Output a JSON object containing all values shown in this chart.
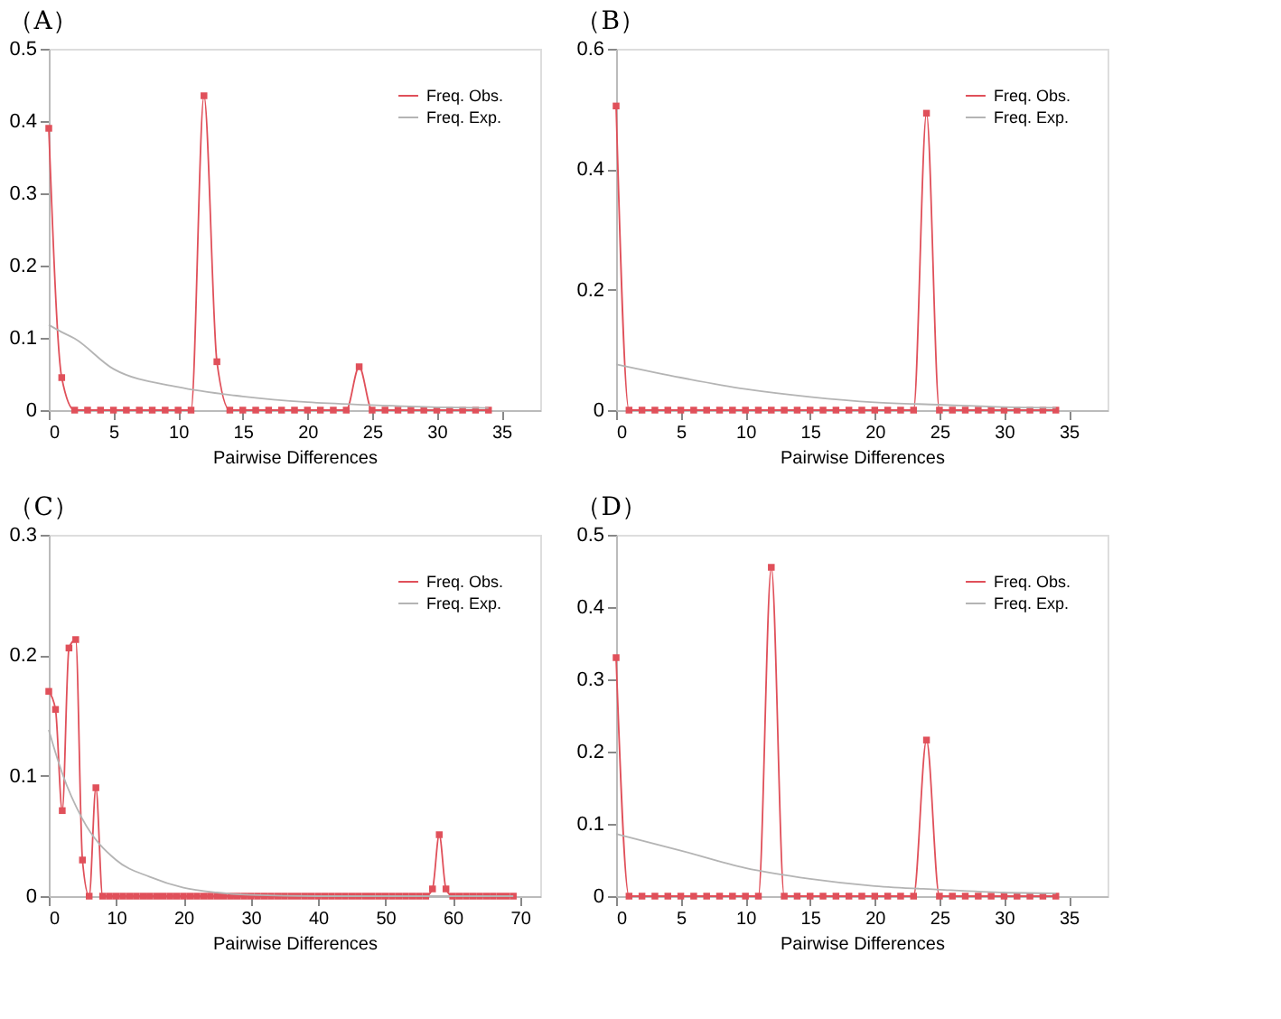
{
  "chart_data": [
    {
      "type": "line",
      "title": "（A）",
      "xlabel": "Pairwise Differences",
      "xlim": [
        0,
        38
      ],
      "xticks": [
        0,
        5,
        10,
        15,
        20,
        25,
        30,
        35
      ],
      "ylim": [
        0,
        0.5
      ],
      "yticks": [
        0,
        0.1,
        0.2,
        0.3,
        0.4,
        0.5
      ],
      "legend": "top right",
      "line_style": "solid",
      "series": [
        {
          "name": "Freq. Obs.",
          "color": "#e0505a",
          "marker": "square",
          "x": [
            0,
            1,
            2,
            3,
            4,
            5,
            6,
            7,
            8,
            9,
            10,
            11,
            12,
            13,
            14,
            15,
            16,
            17,
            18,
            19,
            20,
            21,
            22,
            23,
            24,
            25,
            26,
            27,
            28,
            29,
            30,
            31,
            32,
            33,
            34
          ],
          "values": [
            0.39,
            0.045,
            0,
            0,
            0,
            0,
            0,
            0,
            0,
            0,
            0,
            0,
            0.435,
            0.067,
            0,
            0,
            0,
            0,
            0,
            0,
            0,
            0,
            0,
            0,
            0.06,
            0,
            0,
            0,
            0,
            0,
            0,
            0,
            0,
            0,
            0
          ]
        },
        {
          "name": "Freq. Exp.",
          "color": "#b4b4b4",
          "marker": "none",
          "x": [
            0,
            1,
            2,
            5,
            10,
            15,
            20,
            25,
            30,
            34
          ],
          "values": [
            0.118,
            0.108,
            0.099,
            0.057,
            0.032,
            0.019,
            0.011,
            0.007,
            0.004,
            0.003
          ]
        }
      ]
    },
    {
      "type": "line",
      "title": "（B）",
      "xlabel": "Pairwise Differences",
      "xlim": [
        0,
        38
      ],
      "xticks": [
        0,
        5,
        10,
        15,
        20,
        25,
        30,
        35
      ],
      "ylim": [
        0,
        0.6
      ],
      "yticks": [
        0,
        0.2,
        0.4,
        0.6
      ],
      "legend": "top right",
      "line_style": "solid",
      "series": [
        {
          "name": "Freq. Obs.",
          "color": "#e0505a",
          "marker": "square",
          "x": [
            0,
            1,
            2,
            3,
            4,
            5,
            6,
            7,
            8,
            9,
            10,
            11,
            12,
            13,
            14,
            15,
            16,
            17,
            18,
            19,
            20,
            21,
            22,
            23,
            24,
            25,
            26,
            27,
            28,
            29,
            30,
            31,
            32,
            33,
            34
          ],
          "values": [
            0.505,
            0,
            0,
            0,
            0,
            0,
            0,
            0,
            0,
            0,
            0,
            0,
            0,
            0,
            0,
            0,
            0,
            0,
            0,
            0,
            0,
            0,
            0,
            0,
            0.493,
            0,
            0,
            0,
            0,
            0,
            0,
            0,
            0,
            0,
            0
          ]
        },
        {
          "name": "Freq. Exp.",
          "color": "#b4b4b4",
          "marker": "none",
          "x": [
            0,
            5,
            10,
            15,
            20,
            25,
            30,
            34
          ],
          "values": [
            0.076,
            0.054,
            0.035,
            0.022,
            0.013,
            0.009,
            0.005,
            0.004
          ]
        }
      ]
    },
    {
      "type": "line",
      "title": "（C）",
      "xlabel": "Pairwise Differences",
      "xlim": [
        0,
        73
      ],
      "xticks": [
        0,
        10,
        20,
        30,
        40,
        50,
        60,
        70
      ],
      "ylim": [
        0,
        0.3
      ],
      "yticks": [
        0,
        0.1,
        0.2,
        0.3
      ],
      "legend": "top right",
      "line_style": "solid",
      "series": [
        {
          "name": "Freq. Obs.",
          "color": "#e0505a",
          "marker": "square",
          "x": [
            0,
            1,
            2,
            3,
            4,
            5,
            6,
            7,
            8,
            9,
            10,
            11,
            12,
            13,
            14,
            15,
            16,
            17,
            18,
            19,
            20,
            21,
            22,
            23,
            24,
            25,
            26,
            27,
            28,
            29,
            30,
            31,
            32,
            33,
            34,
            35,
            36,
            37,
            38,
            39,
            40,
            41,
            42,
            43,
            44,
            45,
            46,
            47,
            48,
            49,
            50,
            51,
            52,
            53,
            54,
            55,
            56,
            57,
            58,
            59,
            60,
            61,
            62,
            63,
            64,
            65,
            66,
            67,
            68,
            69
          ],
          "values": [
            0.17,
            0.155,
            0.071,
            0.206,
            0.213,
            0.03,
            0,
            0.09,
            0,
            0,
            0,
            0,
            0,
            0,
            0,
            0,
            0,
            0,
            0,
            0,
            0,
            0,
            0,
            0,
            0,
            0,
            0,
            0,
            0,
            0,
            0,
            0,
            0,
            0,
            0,
            0,
            0,
            0,
            0,
            0,
            0,
            0,
            0,
            0,
            0,
            0,
            0,
            0,
            0,
            0,
            0,
            0,
            0,
            0,
            0,
            0,
            0,
            0.006,
            0.051,
            0.006,
            0,
            0,
            0,
            0,
            0,
            0,
            0,
            0,
            0,
            0
          ]
        },
        {
          "name": "Freq. Exp.",
          "color": "#b4b4b4",
          "marker": "none",
          "x": [
            0,
            1,
            2,
            5,
            10,
            15,
            20,
            25,
            30,
            40,
            69
          ],
          "values": [
            0.138,
            0.119,
            0.102,
            0.064,
            0.03,
            0.016,
            0.007,
            0.003,
            0.001,
            0,
            0
          ]
        }
      ]
    },
    {
      "type": "line",
      "title": "（D）",
      "xlabel": "Pairwise Differences",
      "xlim": [
        0,
        38
      ],
      "xticks": [
        0,
        5,
        10,
        15,
        20,
        25,
        30,
        35
      ],
      "ylim": [
        0,
        0.5
      ],
      "yticks": [
        0,
        0.1,
        0.2,
        0.3,
        0.4,
        0.5
      ],
      "legend": "top right",
      "line_style": "solid",
      "series": [
        {
          "name": "Freq. Obs.",
          "color": "#e0505a",
          "marker": "square",
          "x": [
            0,
            1,
            2,
            3,
            4,
            5,
            6,
            7,
            8,
            9,
            10,
            11,
            12,
            13,
            14,
            15,
            16,
            17,
            18,
            19,
            20,
            21,
            22,
            23,
            24,
            25,
            26,
            27,
            28,
            29,
            30,
            31,
            32,
            33,
            34
          ],
          "values": [
            0.33,
            0,
            0,
            0,
            0,
            0,
            0,
            0,
            0,
            0,
            0,
            0,
            0.455,
            0,
            0,
            0,
            0,
            0,
            0,
            0,
            0,
            0,
            0,
            0,
            0.216,
            0,
            0,
            0,
            0,
            0,
            0,
            0,
            0,
            0,
            0
          ]
        },
        {
          "name": "Freq. Exp.",
          "color": "#b4b4b4",
          "marker": "none",
          "x": [
            0,
            5,
            10,
            15,
            20,
            25,
            30,
            34
          ],
          "values": [
            0.086,
            0.063,
            0.039,
            0.024,
            0.014,
            0.009,
            0.005,
            0.004
          ]
        }
      ]
    }
  ]
}
